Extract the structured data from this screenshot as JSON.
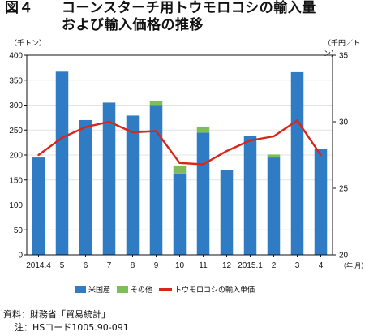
{
  "figure": {
    "number": "図４",
    "title_line1": "コーンスターチ用トウモロコシの輸入量",
    "title_line2": "および輸入価格の推移"
  },
  "units": {
    "left": "（千トン）",
    "right": "（千円／トン）",
    "x": "（年.月）"
  },
  "legend": {
    "domestic": "米国産",
    "other": "その他",
    "price": "トウモロコシの輸入単価"
  },
  "colors": {
    "domestic": "#2f7bc4",
    "other": "#7dbe5a",
    "price": "#d9261c",
    "grid": "#e3e3e3",
    "axis": "#111111"
  },
  "chart_data": {
    "type": "bar",
    "categories": [
      "2014.4",
      "5",
      "6",
      "7",
      "8",
      "9",
      "10",
      "11",
      "12",
      "2015.1",
      "2",
      "3",
      "4"
    ],
    "series": [
      {
        "name": "米国産",
        "type": "bar",
        "stack": "import",
        "axis": "left",
        "values": [
          195,
          367,
          270,
          305,
          279,
          300,
          163,
          245,
          170,
          239,
          195,
          366,
          213
        ]
      },
      {
        "name": "その他",
        "type": "bar",
        "stack": "import",
        "axis": "left",
        "values": [
          0,
          0,
          0,
          0,
          0,
          8,
          16,
          12,
          0,
          0,
          6,
          0,
          0
        ]
      },
      {
        "name": "トウモロコシの輸入単価",
        "type": "line",
        "axis": "right",
        "values": [
          27.5,
          28.8,
          29.6,
          30.0,
          29.2,
          29.3,
          26.9,
          26.8,
          27.8,
          28.6,
          28.9,
          30.1,
          27.5
        ]
      }
    ],
    "y_left": {
      "min": 0,
      "max": 400,
      "ticks": [
        0,
        50,
        100,
        150,
        200,
        250,
        300,
        350,
        400
      ]
    },
    "y_right": {
      "min": 20,
      "max": 35,
      "ticks": [
        20,
        25,
        30,
        35
      ]
    },
    "grid": true,
    "legend_position": "bottom"
  },
  "source": {
    "line1": "資料：財務省「貿易統計」",
    "line2": "注：HSコード1005.90-091"
  }
}
